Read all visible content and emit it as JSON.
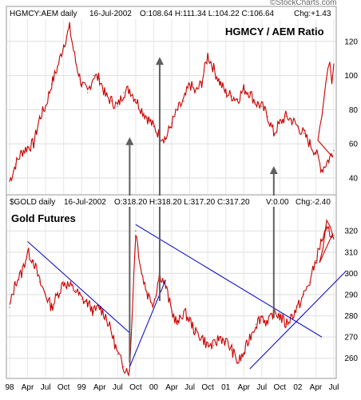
{
  "chart_data": [
    {
      "type": "line",
      "header": "HGMCY:AEM daily",
      "date": "16-Jul-2002",
      "ohlc": "O:108.64 H:111.34 L:104.22 C:106.64",
      "change": "Chg:+1.43",
      "title": "HGMCY / AEM Ratio",
      "ylim": [
        32,
        133
      ],
      "yticks": [
        "40",
        "60",
        "80",
        "100",
        "120"
      ],
      "grid": true,
      "color": "#cc0000",
      "x": [
        "1998-01",
        "1998-02",
        "1998-03",
        "1998-04",
        "1998-05",
        "1998-06",
        "1998-07",
        "1998-08",
        "1998-09",
        "1998-10",
        "1998-11",
        "1998-12",
        "1999-01",
        "1999-02",
        "1999-03",
        "1999-04",
        "1999-05",
        "1999-06",
        "1999-07",
        "1999-08",
        "1999-09",
        "1999-10",
        "1999-11",
        "1999-12",
        "2000-01",
        "2000-02",
        "2000-03",
        "2000-04",
        "2000-05",
        "2000-06",
        "2000-07",
        "2000-08",
        "2000-09",
        "2000-10",
        "2000-11",
        "2000-12",
        "2001-01",
        "2001-02",
        "2001-03",
        "2001-04",
        "2001-05",
        "2001-06",
        "2001-07",
        "2001-08",
        "2001-09",
        "2001-10",
        "2001-11",
        "2001-12",
        "2002-01",
        "2002-02",
        "2002-03",
        "2002-04",
        "2002-05",
        "2002-06",
        "2002-07"
      ],
      "values": [
        38,
        48,
        55,
        58,
        60,
        75,
        82,
        95,
        105,
        118,
        128,
        108,
        95,
        90,
        100,
        98,
        88,
        85,
        82,
        90,
        92,
        86,
        80,
        75,
        70,
        65,
        63,
        72,
        80,
        85,
        95,
        90,
        96,
        112,
        104,
        96,
        90,
        88,
        86,
        92,
        90,
        84,
        82,
        76,
        66,
        72,
        76,
        74,
        70,
        66,
        60,
        55,
        45,
        50,
        56
      ],
      "end_values": [
        62,
        70,
        76,
        86,
        96,
        104,
        108,
        95,
        107
      ]
    },
    {
      "type": "line",
      "header": "$GOLD daily",
      "date": "16-Jul-2002",
      "ohlc": "O:318.20 H:318.20 L:317.20 C:317.20",
      "volume": "V:0.00",
      "change": "Chg:-2.40",
      "title": "Gold Futures",
      "ylim": [
        252,
        331
      ],
      "yticks": [
        "260",
        "270",
        "280",
        "290",
        "300",
        "310",
        "320"
      ],
      "grid": true,
      "color": "#cc0000",
      "x": [
        "1998-01",
        "1998-02",
        "1998-03",
        "1998-04",
        "1998-05",
        "1998-06",
        "1998-07",
        "1998-08",
        "1998-09",
        "1998-10",
        "1998-11",
        "1998-12",
        "1999-01",
        "1999-02",
        "1999-03",
        "1999-04",
        "1999-05",
        "1999-06",
        "1999-07",
        "1999-08",
        "1999-09",
        "1999-10",
        "1999-11",
        "1999-12",
        "2000-01",
        "2000-02",
        "2000-03",
        "2000-04",
        "2000-05",
        "2000-06",
        "2000-07",
        "2000-08",
        "2000-09",
        "2000-10",
        "2000-11",
        "2000-12",
        "2001-01",
        "2001-02",
        "2001-03",
        "2001-04",
        "2001-05",
        "2001-06",
        "2001-07",
        "2001-08",
        "2001-09",
        "2001-10",
        "2001-11",
        "2001-12",
        "2002-01",
        "2002-02",
        "2002-03",
        "2002-04",
        "2002-05",
        "2002-06",
        "2002-07"
      ],
      "values": [
        284,
        296,
        300,
        310,
        306,
        296,
        290,
        284,
        290,
        296,
        294,
        292,
        288,
        286,
        282,
        284,
        280,
        272,
        262,
        256,
        254,
        320,
        300,
        290,
        286,
        300,
        294,
        282,
        276,
        282,
        278,
        272,
        270,
        266,
        266,
        270,
        268,
        264,
        258,
        262,
        270,
        276,
        280,
        276,
        282,
        280,
        276,
        280,
        284,
        290,
        296,
        306,
        316,
        320,
        318
      ],
      "end_values": [
        305,
        312,
        325,
        322,
        316
      ]
    }
  ],
  "x_axis_labels": [
    "98",
    "Apr",
    "Jul",
    "Oct",
    "99",
    "Apr",
    "Jul",
    "Oct",
    "00",
    "Apr",
    "Jul",
    "Oct",
    "01",
    "Apr",
    "Jul",
    "Oct",
    "02",
    "Apr",
    "Jul"
  ],
  "watermark": "©StockCharts.com",
  "arrow_color": "#606060",
  "trendline_color": "#0000cc"
}
